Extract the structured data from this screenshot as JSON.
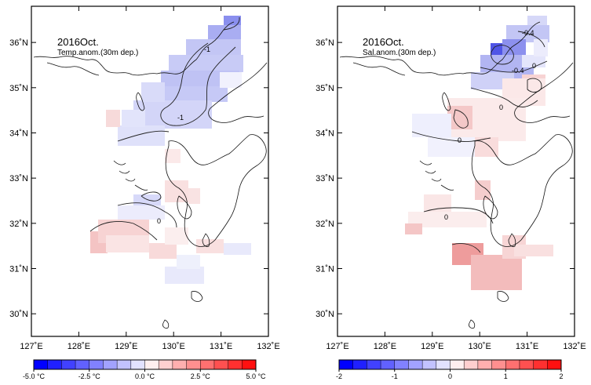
{
  "panels": [
    {
      "id": "temp",
      "title": "2016Oct.",
      "subtitle": "Temp.anom.(30m dep.)",
      "contour_labels": [
        "-1",
        "-1",
        "0"
      ],
      "colorbar": {
        "tick_labels": [
          "-5.0 °C",
          "-2.5 °C",
          "0.0 °C",
          "2.5 °C",
          "5.0 °C"
        ],
        "min": -5.0,
        "max": 5.0,
        "levels": 16,
        "low_color": "#0000ff",
        "high_color": "#ff0000"
      }
    },
    {
      "id": "sal",
      "title": "2016Oct.",
      "subtitle": "Sal.anom.(30m dep.)",
      "contour_labels": [
        "-0.4",
        "-0.4",
        "0",
        "0",
        "0",
        "0"
      ],
      "colorbar": {
        "tick_labels": [
          "-2",
          "-1",
          "0",
          "1",
          "2"
        ],
        "min": -2,
        "max": 2,
        "levels": 16,
        "low_color": "#0000ff",
        "high_color": "#ff0000"
      }
    }
  ],
  "axes": {
    "x_ticks": [
      "127˚E",
      "128˚E",
      "129˚E",
      "130˚E",
      "131˚E",
      "132˚E"
    ],
    "y_ticks": [
      "36˚N",
      "35˚N",
      "34˚N",
      "33˚N",
      "32˚N",
      "31˚N",
      "30˚N"
    ],
    "lon_range": [
      127,
      132
    ],
    "lat_range": [
      29.5,
      36.8
    ]
  }
}
